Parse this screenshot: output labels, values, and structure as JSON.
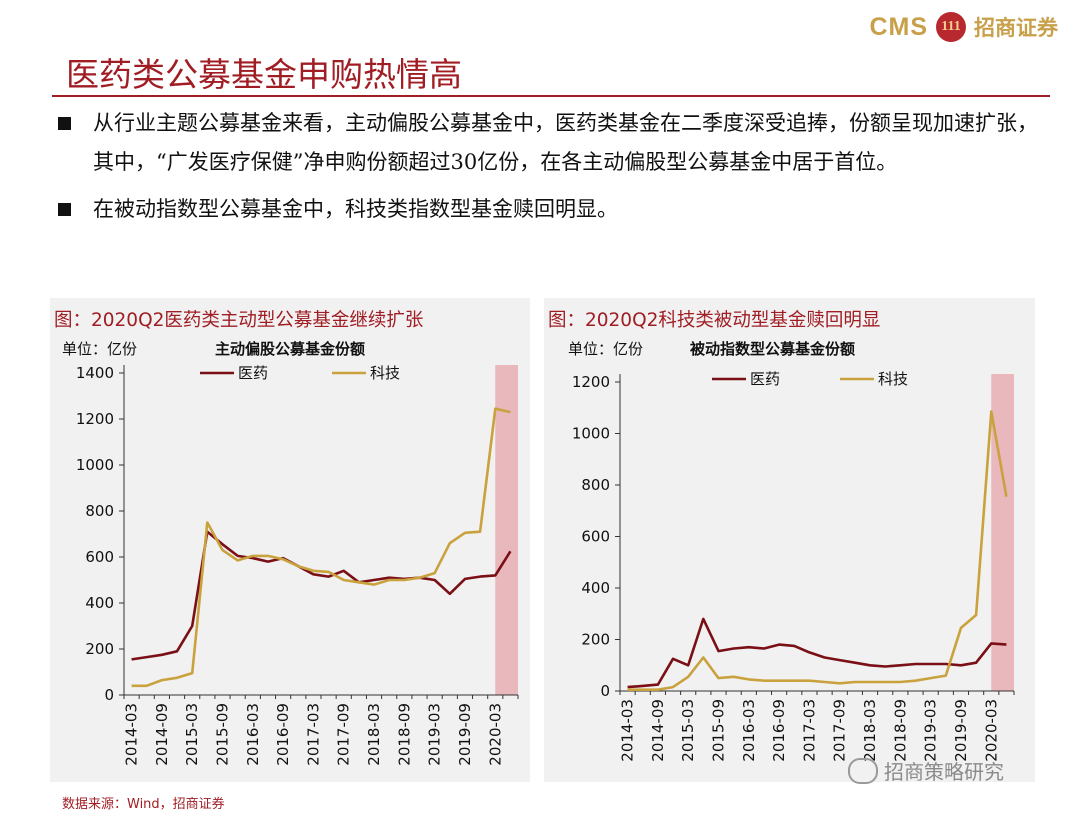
{
  "header": {
    "logo_text": "CMS",
    "logo_mark": "111",
    "logo_brand": "招商证券",
    "title": "医药类公募基金申购热情高"
  },
  "bullets": [
    "从行业主题公募基金来看，主动偏股公募基金中，医药类基金在二季度深受追捧，份额呈现加速扩张，其中，“广发医疗保健”净申购份额超过30亿份，在各主动偏股型公募基金中居于首位。",
    "在被动指数型公募基金中，科技类指数型基金赎回明显。"
  ],
  "colors": {
    "accent": "#a01d24",
    "pharma": "#7a0f16",
    "tech": "#c9a23e",
    "highlight": "#e8b8bd",
    "panel_bg": "#f1f1f1"
  },
  "footer": {
    "source": "数据来源：Wind，招商证券",
    "watermark": "招商策略研究",
    "watermark_icon": "wechat-icon"
  },
  "chart_data": [
    {
      "type": "line",
      "title": "图：2020Q2医药类主动型公募基金继续扩张",
      "unit_label": "单位：亿份",
      "subtitle": "主动偏股公募基金份额",
      "x": [
        "2014-03",
        "2014-06",
        "2014-09",
        "2014-12",
        "2015-03",
        "2015-06",
        "2015-09",
        "2015-12",
        "2016-03",
        "2016-06",
        "2016-09",
        "2016-12",
        "2017-03",
        "2017-06",
        "2017-09",
        "2017-12",
        "2018-03",
        "2018-06",
        "2018-09",
        "2018-12",
        "2019-03",
        "2019-06",
        "2019-09",
        "2019-12",
        "2020-03",
        "2020-06"
      ],
      "x_tick_labels": [
        "2014-03",
        "2014-09",
        "2015-03",
        "2015-09",
        "2016-03",
        "2016-09",
        "2017-03",
        "2017-09",
        "2018-03",
        "2018-09",
        "2019-03",
        "2019-09",
        "2020-03"
      ],
      "ylim": [
        0,
        1400
      ],
      "y_ticks": [
        "0",
        "200",
        "400",
        "600",
        "800",
        "1000",
        "1200",
        "1400"
      ],
      "highlight": [
        "2020-03",
        "2020-06"
      ],
      "legend_position": "top",
      "series": [
        {
          "name": "医药",
          "color": "#7a0f16",
          "values": [
            155,
            165,
            175,
            190,
            300,
            710,
            655,
            605,
            595,
            580,
            595,
            560,
            525,
            515,
            540,
            490,
            500,
            510,
            505,
            510,
            500,
            440,
            505,
            515,
            520,
            625
          ]
        },
        {
          "name": "科技",
          "color": "#c9a23e",
          "values": [
            40,
            40,
            65,
            75,
            95,
            750,
            630,
            585,
            605,
            605,
            590,
            560,
            540,
            535,
            500,
            490,
            480,
            500,
            500,
            510,
            530,
            660,
            705,
            710,
            1245,
            1230
          ]
        }
      ]
    },
    {
      "type": "line",
      "title": "图：2020Q2科技类被动型基金赎回明显",
      "unit_label": "单位：亿份",
      "subtitle": "被动指数型公募基金份额",
      "x": [
        "2014-03",
        "2014-06",
        "2014-09",
        "2014-12",
        "2015-03",
        "2015-06",
        "2015-09",
        "2015-12",
        "2016-03",
        "2016-06",
        "2016-09",
        "2016-12",
        "2017-03",
        "2017-06",
        "2017-09",
        "2017-12",
        "2018-03",
        "2018-06",
        "2018-09",
        "2018-12",
        "2019-03",
        "2019-06",
        "2019-09",
        "2019-12",
        "2020-03",
        "2020-06"
      ],
      "x_tick_labels": [
        "2014-03",
        "2014-09",
        "2015-03",
        "2015-09",
        "2016-03",
        "2016-09",
        "2017-03",
        "2017-09",
        "2018-03",
        "2018-09",
        "2019-03",
        "2019-09",
        "2020-03"
      ],
      "ylim": [
        0,
        1200
      ],
      "y_ticks": [
        "0",
        "200",
        "400",
        "600",
        "800",
        "1000",
        "1200"
      ],
      "highlight": [
        "2020-03",
        "2020-06"
      ],
      "legend_position": "top",
      "series": [
        {
          "name": "医药",
          "color": "#7a0f16",
          "values": [
            15,
            20,
            25,
            125,
            100,
            280,
            155,
            165,
            170,
            165,
            180,
            175,
            150,
            130,
            120,
            110,
            100,
            95,
            100,
            105,
            105,
            105,
            100,
            110,
            185,
            180
          ]
        },
        {
          "name": "科技",
          "color": "#c9a23e",
          "values": [
            5,
            5,
            5,
            15,
            55,
            130,
            50,
            55,
            45,
            40,
            40,
            40,
            40,
            35,
            30,
            35,
            35,
            35,
            35,
            40,
            50,
            60,
            245,
            295,
            1085,
            755
          ]
        }
      ]
    }
  ]
}
